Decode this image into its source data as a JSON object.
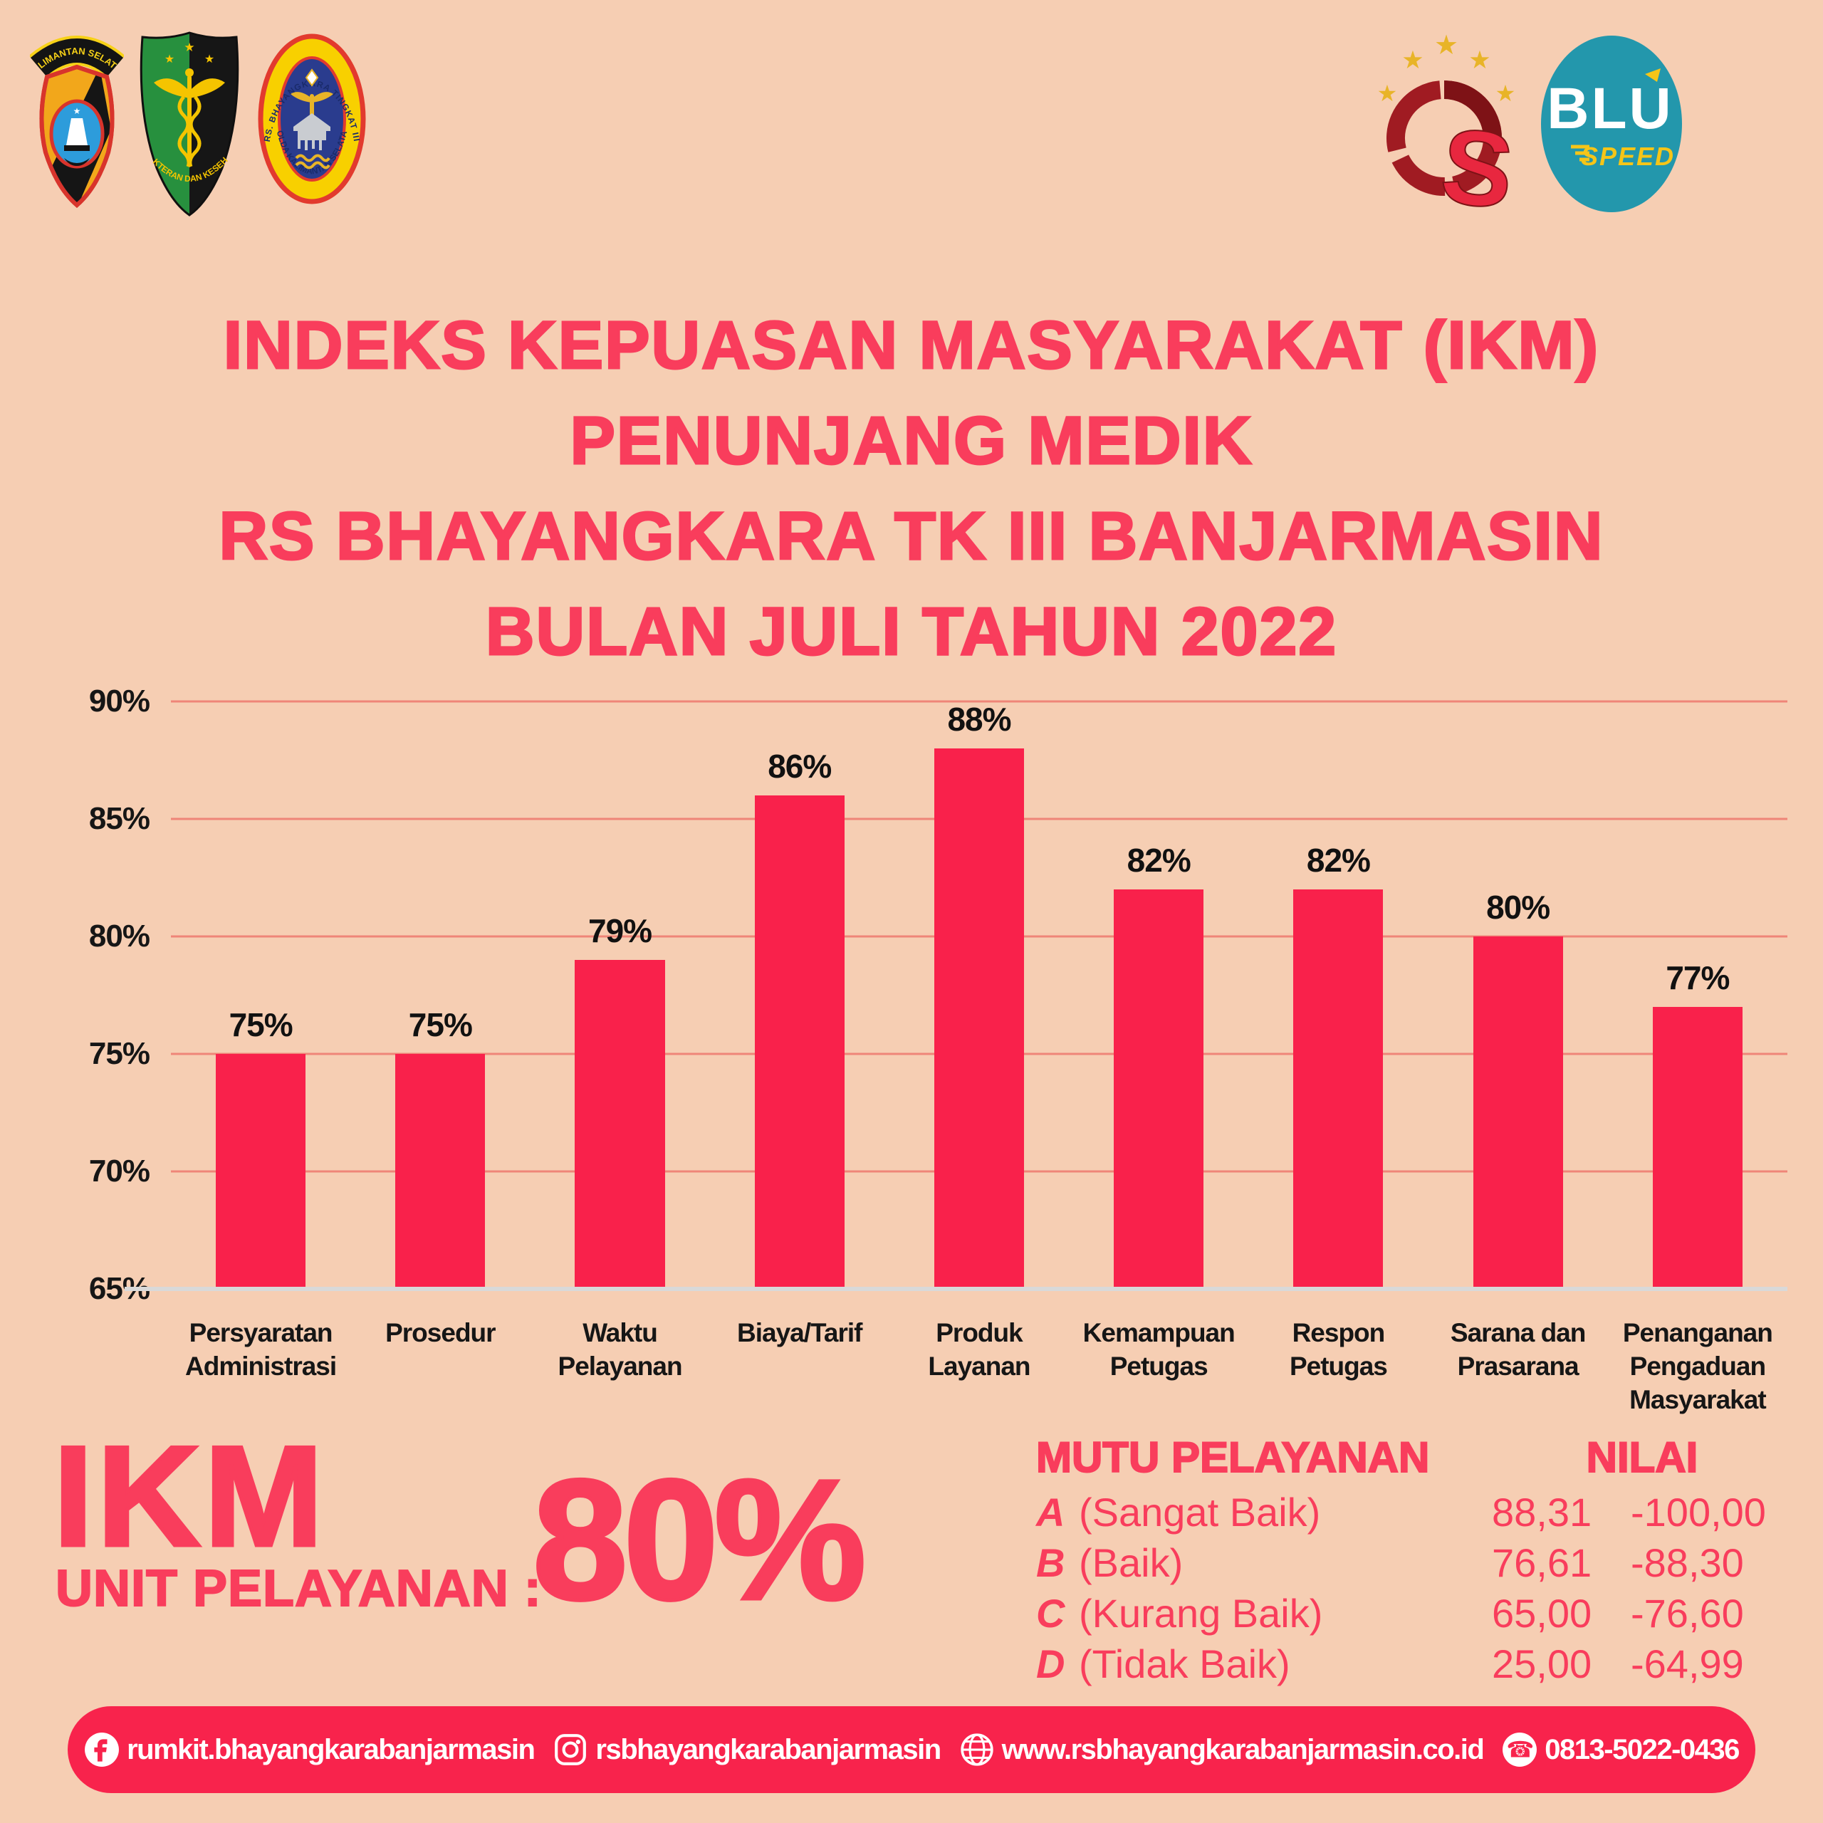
{
  "theme": {
    "canvas_bg": "#F6CEB3",
    "title_color": "#F93D5C",
    "bar_color": "#F9214B",
    "grid_color": "#EF8578",
    "axis_line_color": "#D9D9D9",
    "footer_bg": "#F8234C",
    "footer_text": "#FFFFFF"
  },
  "glyphs": {
    "star": "★",
    "phone": "☎"
  },
  "logos": {
    "polda_badge": {
      "banner_text": "KALIMANTAN SELATAN"
    },
    "medical_badge": {
      "arc_text": "KEDOKTERAN DAN KESEHATAN"
    },
    "hospital_badge": {
      "arc_top": "RS. BHAYANGKARA TINGKAT III",
      "arc_bottom": "POLDA KALIMANTAN SELATAN"
    },
    "quality_badge": {
      "s_mark": "S"
    },
    "blu_badge": {
      "line1": "BLU",
      "line2": "SPEED"
    }
  },
  "title": {
    "lines": [
      "INDEKS KEPUASAN MASYARAKAT (IKM)",
      "PENUNJANG MEDIK",
      "RS BHAYANGKARA TK III BANJARMASIN",
      "BULAN JULI TAHUN 2022"
    ]
  },
  "chart_data": {
    "type": "bar",
    "title": "IKM Penunjang Medik RS Bhayangkara TK III Banjarmasin Bulan Juli Tahun 2022",
    "categories": [
      "Persyaratan Administrasi",
      "Prosedur",
      "Waktu Pelayanan",
      "Biaya/Tarif",
      "Produk Layanan",
      "Kemampuan Petugas",
      "Respon Petugas",
      "Sarana dan Prasarana",
      "Penanganan Pengaduan Masyarakat"
    ],
    "values": [
      75,
      75,
      79,
      86,
      88,
      82,
      82,
      80,
      77
    ],
    "value_labels": [
      "75%",
      "75%",
      "79%",
      "86%",
      "88%",
      "82%",
      "82%",
      "80%",
      "77%"
    ],
    "xlabel": "",
    "ylabel": "",
    "ylim": [
      65,
      90
    ],
    "yticks": [
      90,
      85,
      80,
      75,
      70,
      65
    ],
    "ytick_labels": [
      "90%",
      "85%",
      "80%",
      "75%",
      "70%",
      "65%"
    ],
    "grid": true,
    "legend": false
  },
  "summary": {
    "heading": "IKM",
    "subheading": "UNIT PELAYANAN :",
    "value": "80%"
  },
  "quality_table": {
    "col1_header": "MUTU PELAYANAN",
    "col2_header": "NILAI",
    "rows": [
      {
        "grade": "A",
        "label": "(Sangat Baik)",
        "min": "88,31",
        "max": "100,00"
      },
      {
        "grade": "B",
        "label": "(Baik)",
        "min": "76,61",
        "max": "88,30"
      },
      {
        "grade": "C",
        "label": "(Kurang Baik)",
        "min": "65,00",
        "max": "76,60"
      },
      {
        "grade": "D",
        "label": "(Tidak Baik)",
        "min": "25,00",
        "max": "64,99"
      }
    ]
  },
  "footer": {
    "items": [
      {
        "icon": "facebook-icon",
        "text": "rumkit.bhayangkarabanjarmasin"
      },
      {
        "icon": "instagram-icon",
        "text": "rsbhayangkarabanjarmasin"
      },
      {
        "icon": "globe-icon",
        "text": "www.rsbhayangkarabanjarmasin.co.id"
      },
      {
        "icon": "phone-icon",
        "text": "0813-5022-0436"
      }
    ]
  }
}
